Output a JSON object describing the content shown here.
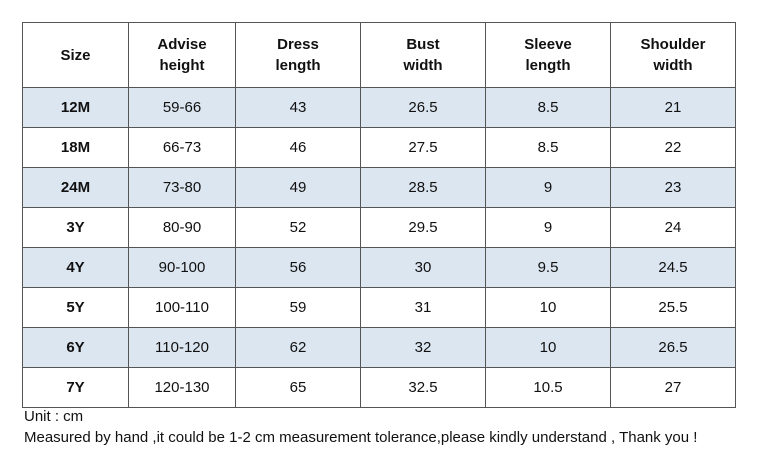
{
  "table": {
    "header": [
      "Size",
      "Advise\nheight",
      "Dress\nlength",
      "Bust\nwidth",
      "Sleeve\nlength",
      "Shoulder\nwidth"
    ],
    "rows": [
      [
        "12M",
        "59-66",
        43,
        26.5,
        8.5,
        21
      ],
      [
        "18M",
        "66-73",
        46,
        27.5,
        8.5,
        22
      ],
      [
        "24M",
        "73-80",
        49,
        28.5,
        9,
        23
      ],
      [
        "3Y",
        "80-90",
        52,
        29.5,
        9,
        24
      ],
      [
        "4Y",
        "90-100",
        56,
        30,
        9.5,
        24.5
      ],
      [
        "5Y",
        "100-110",
        59,
        31,
        10,
        25.5
      ],
      [
        "6Y",
        "110-120",
        62,
        32,
        10,
        26.5
      ],
      [
        "7Y",
        "120-130",
        65,
        32.5,
        10.5,
        27
      ]
    ]
  },
  "notes": [
    "Unit : cm",
    "Measured by hand ,it could be 1-2 cm measurement tolerance,please kindly understand , Thank you !"
  ]
}
